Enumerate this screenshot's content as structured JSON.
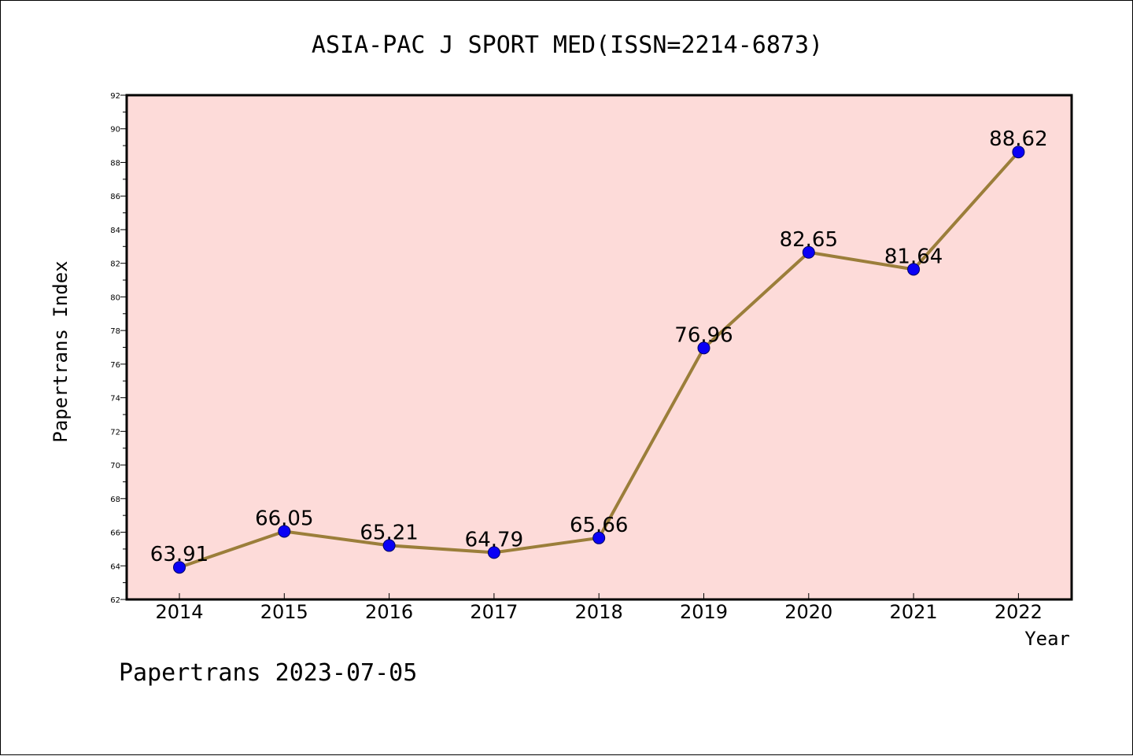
{
  "footer": "Papertrans 2023-07-05",
  "colors": {
    "plot_background": "#fddbd9",
    "line": "#9b7e3a",
    "marker": "#0a00f5",
    "marker_edge": "#000066"
  },
  "chart_data": {
    "type": "line",
    "title": "ASIA-PAC J SPORT MED(ISSN=2214-6873)",
    "xlabel": "Year",
    "ylabel": "Papertrans Index",
    "x": [
      "2014",
      "2015",
      "2016",
      "2017",
      "2018",
      "2019",
      "2020",
      "2021",
      "2022"
    ],
    "series": [
      {
        "values": [
          63.91,
          66.05,
          65.21,
          64.79,
          65.66,
          76.96,
          82.65,
          81.64,
          88.62
        ],
        "labels": [
          "63.91",
          "66.05",
          "65.21",
          "64.79",
          "65.66",
          "76.96",
          "82.65",
          "81.64",
          "88.62"
        ]
      }
    ],
    "ylim": [
      62,
      92
    ],
    "yticks": [
      "62",
      "64",
      "66",
      "68",
      "70",
      "72",
      "74",
      "76",
      "78",
      "80",
      "82",
      "84",
      "86",
      "88",
      "90",
      "92"
    ],
    "grid": false,
    "legend": "none"
  }
}
